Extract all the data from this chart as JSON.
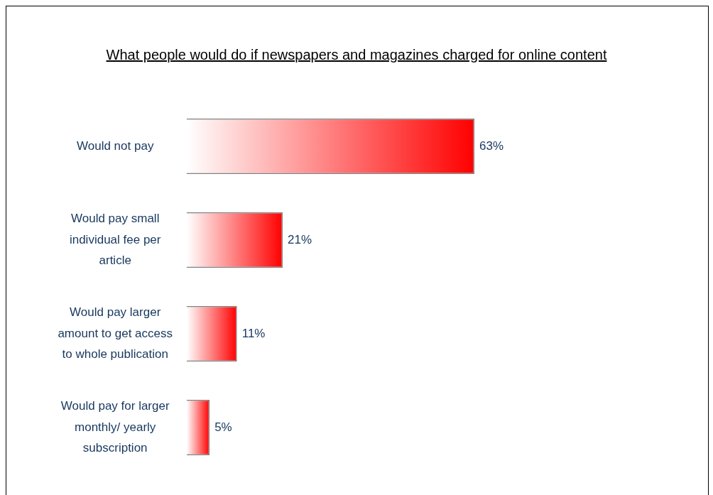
{
  "chart_data": {
    "type": "bar",
    "orientation": "horizontal",
    "title": "What people would do if newspapers and magazines charged for online content",
    "categories": [
      "Would not pay",
      "Would pay small individual fee per article",
      "Would pay larger amount to get access to whole publication",
      "Would pay for larger monthly/ yearly subscription"
    ],
    "values": [
      63,
      21,
      11,
      5
    ],
    "color": "#ff0000",
    "data_labels": true,
    "value_labels": [
      "63%",
      "21%",
      "11%",
      "5%"
    ],
    "legend": false,
    "grid": false
  }
}
